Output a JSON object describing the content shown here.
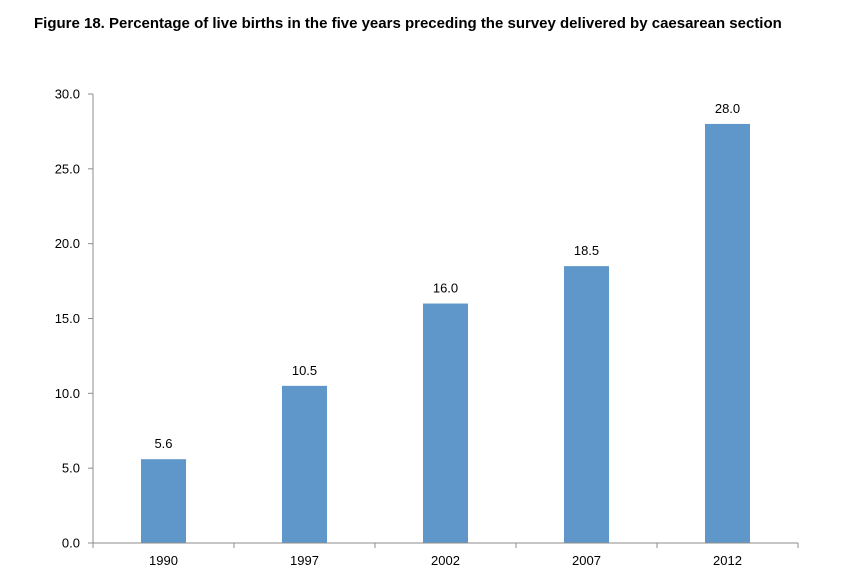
{
  "title": "Figure 18. Percentage of live births in the five years preceding the survey delivered by caesarean section",
  "colors": {
    "bar": "#5f97ca",
    "axis": "#8c8c8c"
  },
  "chart_data": {
    "type": "bar",
    "title": "Figure 18. Percentage of live births in the five years preceding the survey delivered by caesarean section",
    "xlabel": "",
    "ylabel": "",
    "categories": [
      "1990",
      "1997",
      "2002",
      "2007",
      "2012"
    ],
    "values": [
      5.6,
      10.5,
      16.0,
      18.5,
      28.0
    ],
    "value_labels": [
      "5.6",
      "10.5",
      "16.0",
      "18.5",
      "28.0"
    ],
    "ylim": [
      0,
      30
    ],
    "yticks": [
      0,
      5,
      10,
      15,
      20,
      25,
      30
    ],
    "ytick_labels": [
      "0.0",
      "5.0",
      "10.0",
      "15.0",
      "20.0",
      "25.0",
      "30.0"
    ],
    "grid": false,
    "legend": "none"
  }
}
